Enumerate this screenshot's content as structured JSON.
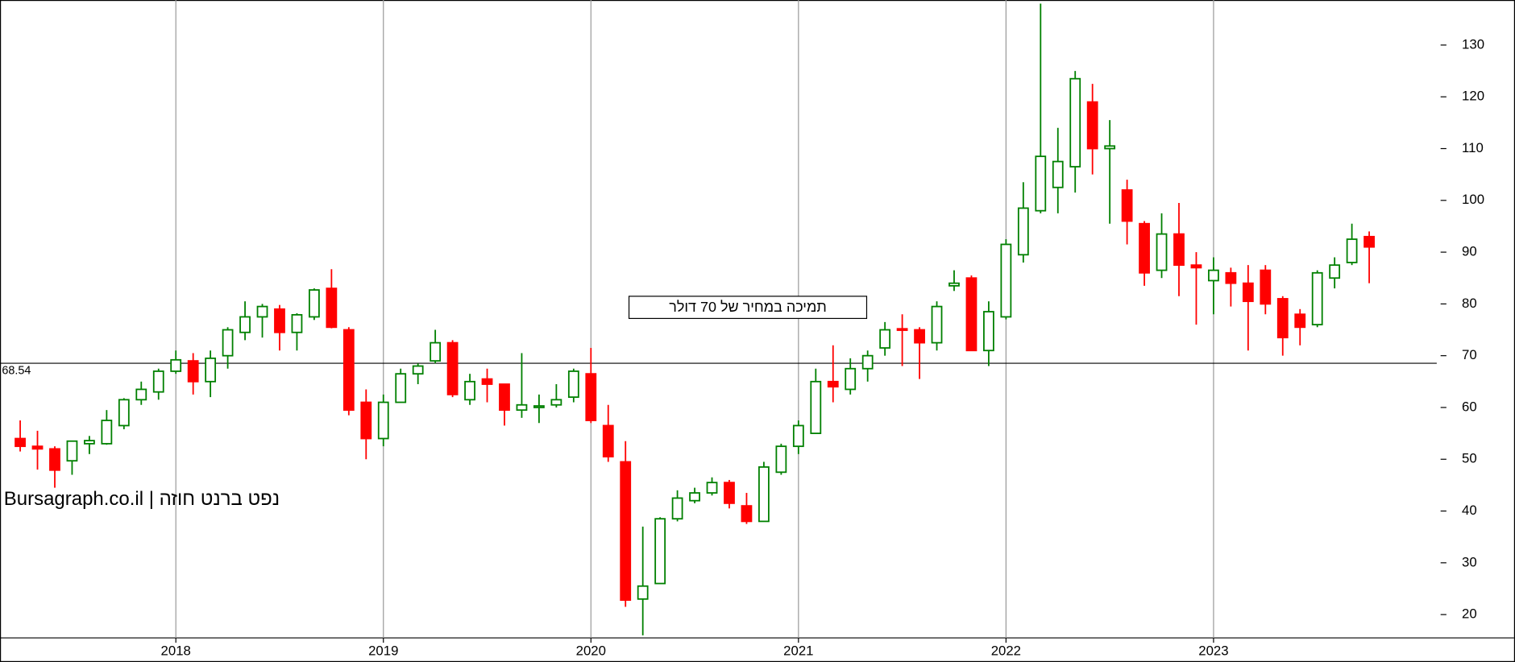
{
  "chart_data": {
    "type": "candlestick",
    "watermark": "Bursagraph.co.il | נפט ברנט חוזה",
    "annotation": "תמיכה במחיר של 70 דולר",
    "hline": 68.54,
    "up_color": "#008000",
    "down_color": "#ff0000",
    "grid": true,
    "ylim": [
      15.5,
      138.7
    ],
    "yticks": [
      20,
      30,
      40,
      50,
      60,
      70,
      80,
      90,
      100,
      110,
      120,
      130
    ],
    "categories": [
      null,
      null,
      null,
      null,
      null,
      null,
      null,
      null,
      null,
      "2018",
      null,
      null,
      null,
      null,
      null,
      null,
      null,
      null,
      null,
      null,
      null,
      "2019",
      null,
      null,
      null,
      null,
      null,
      null,
      null,
      null,
      null,
      null,
      null,
      "2020",
      null,
      null,
      null,
      null,
      null,
      null,
      null,
      null,
      null,
      null,
      null,
      "2021",
      null,
      null,
      null,
      null,
      null,
      null,
      null,
      null,
      null,
      null,
      null,
      "2022",
      null,
      null,
      null,
      null,
      null,
      null,
      null,
      null,
      null,
      null,
      null,
      "2023",
      null,
      null,
      null,
      null,
      null,
      null,
      null,
      null,
      null
    ],
    "series": [
      {
        "open": [
          54,
          52.5,
          52,
          49.7,
          53,
          53,
          56.5,
          61.5,
          63,
          67,
          69,
          65,
          70,
          74.5,
          77.5,
          79,
          74.5,
          77.5,
          83,
          75,
          61,
          54,
          61,
          66.5,
          69,
          72.5,
          61.5,
          65.5,
          64.5,
          59.5,
          60,
          60.5,
          62,
          66.5,
          56.5,
          49.5,
          23,
          26,
          38.5,
          42,
          43.5,
          45.5,
          41,
          38,
          47.5,
          52.5,
          55,
          65,
          63.5,
          67.5,
          71.5,
          75.2,
          75,
          72.5,
          83.5,
          85,
          71,
          77.5,
          89.5,
          98,
          102.5,
          106.5,
          119,
          110,
          102,
          95.5,
          86.5,
          93.5,
          87.5,
          84.5,
          86,
          84,
          86.5,
          81,
          78,
          76,
          85,
          88,
          93
        ],
        "high": [
          57.5,
          55.5,
          52.5,
          53.5,
          54.5,
          59.5,
          61.8,
          65,
          67.5,
          71,
          70.5,
          71,
          75.5,
          80.5,
          80,
          79.8,
          78.2,
          83,
          86.7,
          75.5,
          63.5,
          62.5,
          67.5,
          68.5,
          75,
          73,
          66.5,
          67.5,
          64.5,
          70.5,
          62.5,
          64.5,
          67.5,
          71.5,
          60.5,
          53.5,
          37,
          38.8,
          44,
          44.5,
          46.5,
          46,
          43.5,
          49.5,
          53,
          57.5,
          67.5,
          72,
          69.5,
          71,
          76.5,
          78,
          75.5,
          80.5,
          86.5,
          85.5,
          80.5,
          92.5,
          103.5,
          138,
          114,
          125,
          122.5,
          115.5,
          104,
          96,
          97.5,
          99.5,
          90,
          89,
          87,
          87.5,
          87.5,
          81.5,
          79,
          86.5,
          89,
          95.5,
          94
        ],
        "low": [
          51.5,
          48,
          44.5,
          47,
          51,
          52.8,
          55.8,
          60.5,
          61.5,
          66.5,
          62.5,
          62,
          67.5,
          73,
          73.5,
          71,
          71,
          76.9,
          75.3,
          58.5,
          50,
          52.5,
          61,
          64.5,
          68.5,
          62,
          60.5,
          61,
          56.5,
          58,
          57,
          60,
          61,
          57,
          49.5,
          21.5,
          16,
          26,
          38,
          41.5,
          43,
          40.5,
          37.5,
          38,
          47,
          51,
          55,
          61,
          62.5,
          65,
          70,
          68,
          65.5,
          71,
          82.5,
          71,
          68,
          77,
          88,
          97.5,
          97.5,
          101.5,
          105,
          95.5,
          91.5,
          83.5,
          85,
          81.5,
          76,
          78,
          79.5,
          71,
          78,
          70,
          72,
          75.5,
          83,
          87.5,
          84
        ],
        "close": [
          52.5,
          52,
          47.9,
          53.5,
          53.6,
          57.5,
          61.5,
          63.5,
          67,
          69.2,
          65,
          69.5,
          75,
          77.5,
          79.5,
          74.5,
          77.9,
          82.7,
          75.5,
          59.5,
          54,
          61,
          66.5,
          68,
          72.5,
          62.5,
          65,
          64.5,
          59.5,
          60.5,
          60.3,
          61.5,
          67,
          57.5,
          50.5,
          22.8,
          25.5,
          38.5,
          42.5,
          43.5,
          45.5,
          41.5,
          38,
          48.5,
          52.5,
          56.5,
          65,
          64,
          67.5,
          70,
          75,
          75,
          72.5,
          79.5,
          84,
          71,
          78.5,
          91.5,
          98.5,
          108.5,
          107.5,
          123.5,
          110,
          110.5,
          96,
          86,
          93.5,
          87.5,
          87,
          86.5,
          84,
          80.5,
          80,
          73.5,
          75.5,
          86,
          87.5,
          92.5,
          91
        ]
      }
    ]
  }
}
